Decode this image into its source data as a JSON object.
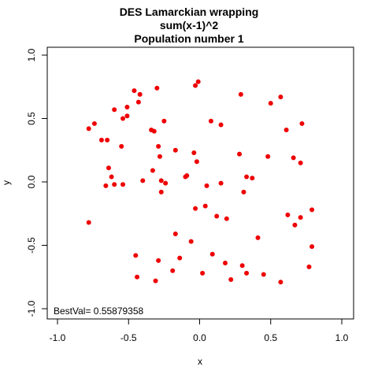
{
  "chart_data": {
    "type": "scatter",
    "title_lines": [
      "DES Lamarckian wrapping",
      "sum(x-1)^2",
      "Population number 1"
    ],
    "xlabel": "x",
    "ylabel": "y",
    "xlim": [
      -1.0,
      1.0
    ],
    "ylim": [
      -1.0,
      1.0
    ],
    "xticks": [
      "-1.0",
      "-0.5",
      "0.0",
      "0.5",
      "1.0"
    ],
    "yticks": [
      "-1.0",
      "-0.5",
      "0.0",
      "0.5",
      "1.0"
    ],
    "xtick_values": [
      -1.0,
      -0.5,
      0.0,
      0.5,
      1.0
    ],
    "ytick_values": [
      -1.0,
      -0.5,
      0.0,
      0.5,
      1.0
    ],
    "grid": false,
    "point_color": "#ee0000",
    "annotation": "BestVal= 0.55879358",
    "annotation_color": "#1010cc",
    "points": [
      [
        -0.78,
        0.42
      ],
      [
        -0.74,
        0.46
      ],
      [
        -0.69,
        0.33
      ],
      [
        -0.65,
        0.33
      ],
      [
        -0.6,
        0.57
      ],
      [
        -0.54,
        0.5
      ],
      [
        -0.51,
        0.52
      ],
      [
        -0.51,
        0.59
      ],
      [
        -0.46,
        0.72
      ],
      [
        -0.42,
        0.69
      ],
      [
        -0.43,
        0.63
      ],
      [
        -0.3,
        0.74
      ],
      [
        -0.03,
        0.76
      ],
      [
        -0.01,
        0.79
      ],
      [
        0.08,
        0.48
      ],
      [
        0.15,
        0.45
      ],
      [
        0.29,
        0.69
      ],
      [
        0.5,
        0.62
      ],
      [
        0.57,
        0.67
      ],
      [
        0.61,
        0.41
      ],
      [
        0.72,
        0.46
      ],
      [
        -0.34,
        0.41
      ],
      [
        -0.32,
        0.4
      ],
      [
        -0.25,
        0.48
      ],
      [
        -0.55,
        0.28
      ],
      [
        -0.29,
        0.28
      ],
      [
        -0.28,
        0.2
      ],
      [
        -0.17,
        0.25
      ],
      [
        -0.04,
        0.23
      ],
      [
        -0.02,
        0.16
      ],
      [
        0.28,
        0.22
      ],
      [
        0.48,
        0.2
      ],
      [
        0.66,
        0.19
      ],
      [
        0.71,
        0.15
      ],
      [
        -0.64,
        0.11
      ],
      [
        -0.62,
        0.04
      ],
      [
        -0.33,
        0.09
      ],
      [
        -0.4,
        0.01
      ],
      [
        -0.27,
        0.01
      ],
      [
        -0.24,
        -0.01
      ],
      [
        -0.1,
        0.04
      ],
      [
        -0.09,
        0.05
      ],
      [
        0.05,
        -0.03
      ],
      [
        0.15,
        -0.01
      ],
      [
        0.33,
        0.04
      ],
      [
        0.37,
        0.03
      ],
      [
        0.31,
        -0.08
      ],
      [
        -0.66,
        -0.03
      ],
      [
        -0.6,
        -0.02
      ],
      [
        -0.54,
        -0.02
      ],
      [
        -0.27,
        -0.08
      ],
      [
        -0.03,
        -0.21
      ],
      [
        0.04,
        -0.19
      ],
      [
        0.12,
        -0.27
      ],
      [
        0.19,
        -0.29
      ],
      [
        0.62,
        -0.26
      ],
      [
        0.67,
        -0.34
      ],
      [
        0.71,
        -0.28
      ],
      [
        0.79,
        -0.22
      ],
      [
        -0.78,
        -0.32
      ],
      [
        -0.17,
        -0.41
      ],
      [
        -0.06,
        -0.47
      ],
      [
        0.41,
        -0.44
      ],
      [
        0.79,
        -0.51
      ],
      [
        -0.45,
        -0.58
      ],
      [
        -0.29,
        -0.62
      ],
      [
        -0.14,
        -0.6
      ],
      [
        0.09,
        -0.57
      ],
      [
        0.18,
        -0.64
      ],
      [
        0.3,
        -0.66
      ],
      [
        0.33,
        -0.72
      ],
      [
        -0.44,
        -0.75
      ],
      [
        -0.19,
        -0.7
      ],
      [
        0.02,
        -0.72
      ],
      [
        0.22,
        -0.77
      ],
      [
        0.45,
        -0.73
      ],
      [
        0.57,
        -0.79
      ],
      [
        0.77,
        -0.67
      ],
      [
        -0.31,
        -0.78
      ]
    ]
  }
}
